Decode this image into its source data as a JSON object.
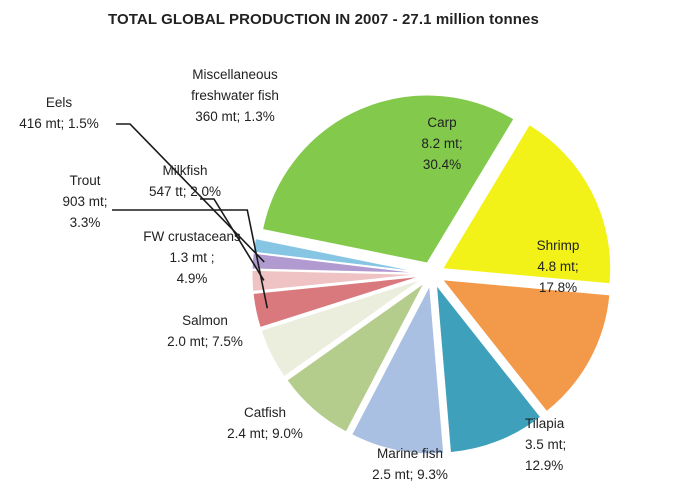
{
  "chart_data": {
    "type": "pie",
    "title": "TOTAL GLOBAL PRODUCTION IN 2007 - 27.1 million tonnes",
    "slices": [
      {
        "name": "Carp",
        "value": 30.4,
        "color": "#82c94c",
        "label_lines": [
          "Carp",
          "8.2 mt;",
          "30.4%"
        ]
      },
      {
        "name": "Shrimp",
        "value": 17.8,
        "color": "#f2f218",
        "label_lines": [
          "Shrimp",
          "4.8 mt;",
          "17.8%"
        ]
      },
      {
        "name": "Tilapia",
        "value": 12.9,
        "color": "#f39a4a",
        "label_lines": [
          "Tilapia",
          "3.5 mt;",
          "12.9%"
        ]
      },
      {
        "name": "Marine fish",
        "value": 9.3,
        "color": "#3fa0bc",
        "label_lines": [
          "Marine fish",
          "2.5 mt; 9.3%"
        ]
      },
      {
        "name": "Catfish",
        "value": 9.0,
        "color": "#a9c0e2",
        "label_lines": [
          "Catfish",
          "2.4 mt; 9.0%"
        ]
      },
      {
        "name": "Salmon",
        "value": 7.5,
        "color": "#b4cc8c",
        "label_lines": [
          "Salmon",
          "2.0  mt; 7.5%"
        ]
      },
      {
        "name": "FW crustaceans",
        "value": 4.9,
        "color": "#ebeedd",
        "label_lines": [
          "FW crustaceans",
          "1.3 mt ;",
          "4.9%"
        ]
      },
      {
        "name": "Trout",
        "value": 3.3,
        "color": "#d9797d",
        "label_lines": [
          "Trout",
          "903 mt;",
          "3.3%"
        ]
      },
      {
        "name": "Milkfish",
        "value": 2.0,
        "color": "#efc3c3",
        "label_lines": [
          "Milkfish",
          "547 tt; 2.0%"
        ]
      },
      {
        "name": "Eels",
        "value": 1.5,
        "color": "#b09ad0",
        "label_lines": [
          "Eels",
          "416  mt; 1.5%"
        ]
      },
      {
        "name": "Miscellaneous freshwater fish",
        "value": 1.3,
        "color": "#86c6e4",
        "label_lines": [
          "Miscellaneous",
          "freshwater fish",
          "360 mt; 1.3%"
        ]
      }
    ]
  }
}
